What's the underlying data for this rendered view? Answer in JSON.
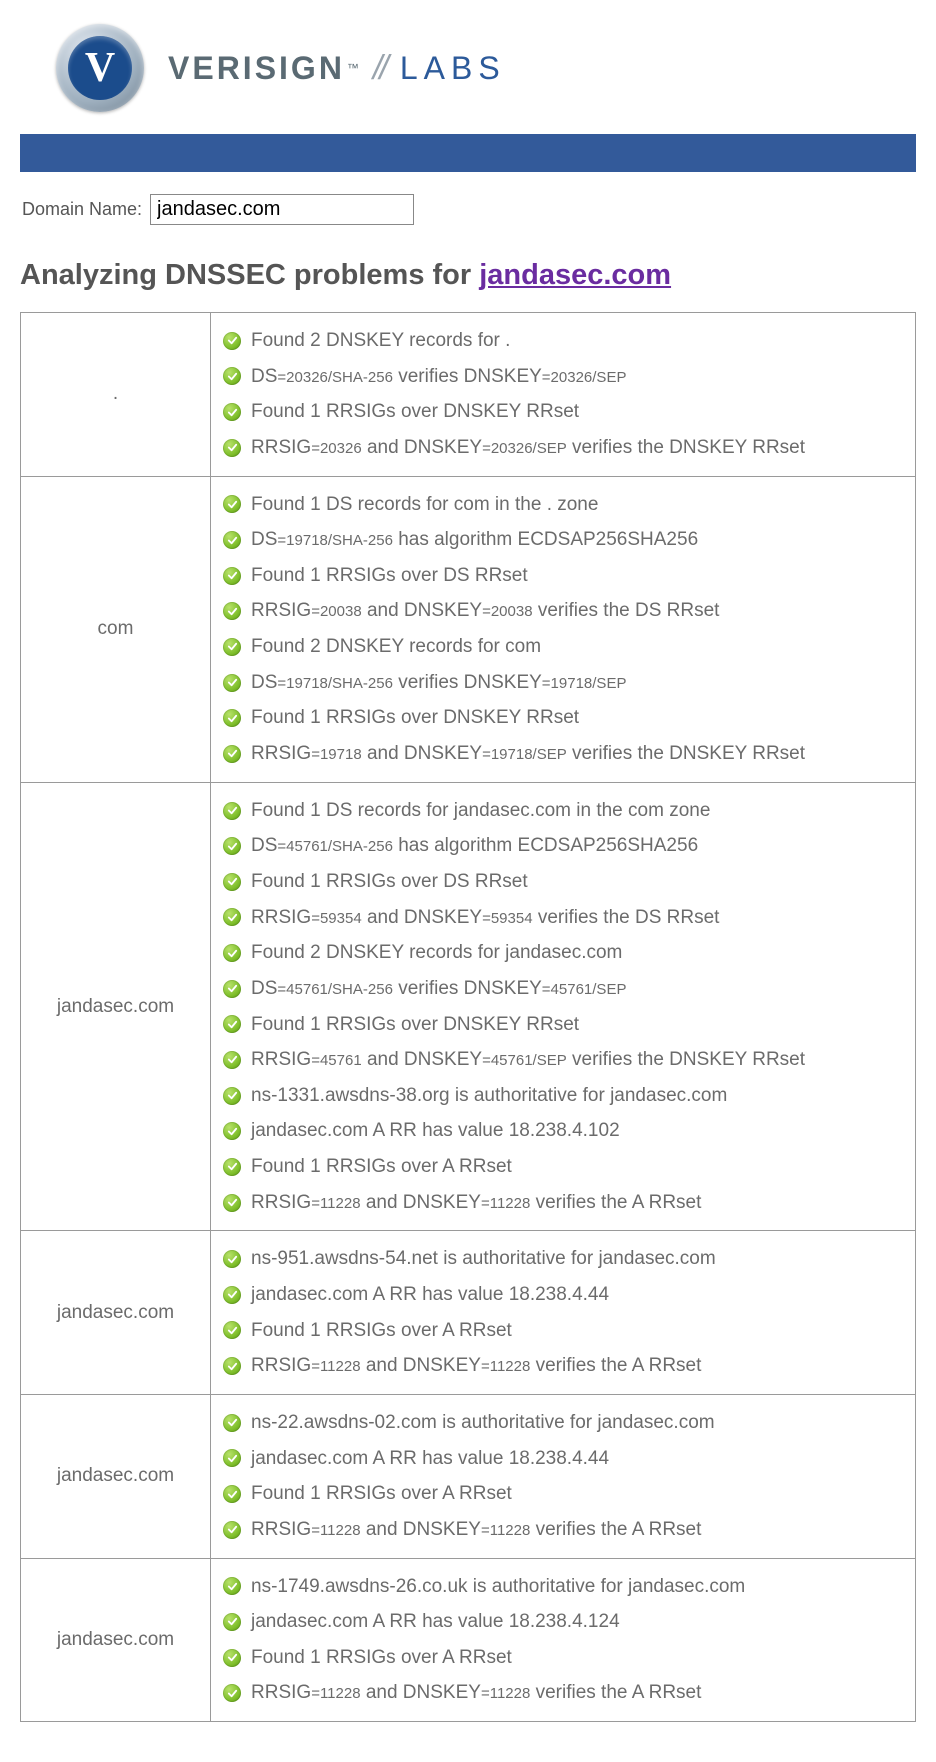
{
  "brand": {
    "letter": "V",
    "name": "VERISIGN",
    "tm": "™",
    "slashes": "//",
    "labs": "LABS"
  },
  "colors": {
    "navbar": "#335a9a",
    "heading_link": "#6a2ca0",
    "text": "#555555",
    "check_green": "#7fbf2b"
  },
  "form": {
    "label": "Domain Name:",
    "value": "jandasec.com"
  },
  "heading": {
    "prefix": "Analyzing DNSSEC problems for ",
    "domain": "jandasec.com"
  },
  "rows": [
    {
      "zone": ".",
      "items": [
        [
          {
            "t": "Found 2 DNSKEY records for ."
          }
        ],
        [
          {
            "t": "DS",
            "s": "=20326/SHA-256"
          },
          {
            "t": " verifies DNSKEY",
            "s": "=20326/SEP"
          }
        ],
        [
          {
            "t": "Found 1 RRSIGs over DNSKEY RRset"
          }
        ],
        [
          {
            "t": "RRSIG",
            "s": "=20326"
          },
          {
            "t": " and DNSKEY",
            "s": "=20326/SEP"
          },
          {
            "t": " verifies the DNSKEY RRset"
          }
        ]
      ]
    },
    {
      "zone": "com",
      "items": [
        [
          {
            "t": "Found 1 DS records for com in the . zone"
          }
        ],
        [
          {
            "t": "DS",
            "s": "=19718/SHA-256"
          },
          {
            "t": " has algorithm ECDSAP256SHA256"
          }
        ],
        [
          {
            "t": "Found 1 RRSIGs over DS RRset"
          }
        ],
        [
          {
            "t": "RRSIG",
            "s": "=20038"
          },
          {
            "t": " and DNSKEY",
            "s": "=20038"
          },
          {
            "t": " verifies the DS RRset"
          }
        ],
        [
          {
            "t": "Found 2 DNSKEY records for com"
          }
        ],
        [
          {
            "t": "DS",
            "s": "=19718/SHA-256"
          },
          {
            "t": " verifies DNSKEY",
            "s": "=19718/SEP"
          }
        ],
        [
          {
            "t": "Found 1 RRSIGs over DNSKEY RRset"
          }
        ],
        [
          {
            "t": "RRSIG",
            "s": "=19718"
          },
          {
            "t": " and DNSKEY",
            "s": "=19718/SEP"
          },
          {
            "t": " verifies the DNSKEY RRset"
          }
        ]
      ]
    },
    {
      "zone": "jandasec.com",
      "items": [
        [
          {
            "t": "Found 1 DS records for jandasec.com in the com zone"
          }
        ],
        [
          {
            "t": "DS",
            "s": "=45761/SHA-256"
          },
          {
            "t": " has algorithm ECDSAP256SHA256"
          }
        ],
        [
          {
            "t": "Found 1 RRSIGs over DS RRset"
          }
        ],
        [
          {
            "t": "RRSIG",
            "s": "=59354"
          },
          {
            "t": " and DNSKEY",
            "s": "=59354"
          },
          {
            "t": " verifies the DS RRset"
          }
        ],
        [
          {
            "t": "Found 2 DNSKEY records for jandasec.com"
          }
        ],
        [
          {
            "t": "DS",
            "s": "=45761/SHA-256"
          },
          {
            "t": " verifies DNSKEY",
            "s": "=45761/SEP"
          }
        ],
        [
          {
            "t": "Found 1 RRSIGs over DNSKEY RRset"
          }
        ],
        [
          {
            "t": "RRSIG",
            "s": "=45761"
          },
          {
            "t": " and DNSKEY",
            "s": "=45761/SEP"
          },
          {
            "t": " verifies the DNSKEY RRset"
          }
        ],
        [
          {
            "t": "ns-1331.awsdns-38.org is authoritative for jandasec.com"
          }
        ],
        [
          {
            "t": "jandasec.com A RR has value 18.238.4.102"
          }
        ],
        [
          {
            "t": "Found 1 RRSIGs over A RRset"
          }
        ],
        [
          {
            "t": "RRSIG",
            "s": "=11228"
          },
          {
            "t": " and DNSKEY",
            "s": "=11228"
          },
          {
            "t": " verifies the A RRset"
          }
        ]
      ]
    },
    {
      "zone": "jandasec.com",
      "items": [
        [
          {
            "t": "ns-951.awsdns-54.net is authoritative for jandasec.com"
          }
        ],
        [
          {
            "t": "jandasec.com A RR has value 18.238.4.44"
          }
        ],
        [
          {
            "t": "Found 1 RRSIGs over A RRset"
          }
        ],
        [
          {
            "t": "RRSIG",
            "s": "=11228"
          },
          {
            "t": " and DNSKEY",
            "s": "=11228"
          },
          {
            "t": " verifies the A RRset"
          }
        ]
      ]
    },
    {
      "zone": "jandasec.com",
      "items": [
        [
          {
            "t": "ns-22.awsdns-02.com is authoritative for jandasec.com"
          }
        ],
        [
          {
            "t": "jandasec.com A RR has value 18.238.4.44"
          }
        ],
        [
          {
            "t": "Found 1 RRSIGs over A RRset"
          }
        ],
        [
          {
            "t": "RRSIG",
            "s": "=11228"
          },
          {
            "t": " and DNSKEY",
            "s": "=11228"
          },
          {
            "t": " verifies the A RRset"
          }
        ]
      ]
    },
    {
      "zone": "jandasec.com",
      "items": [
        [
          {
            "t": "ns-1749.awsdns-26.co.uk is authoritative for jandasec.com"
          }
        ],
        [
          {
            "t": "jandasec.com A RR has value 18.238.4.124"
          }
        ],
        [
          {
            "t": "Found 1 RRSIGs over A RRset"
          }
        ],
        [
          {
            "t": "RRSIG",
            "s": "=11228"
          },
          {
            "t": " and DNSKEY",
            "s": "=11228"
          },
          {
            "t": " verifies the A RRset"
          }
        ]
      ]
    }
  ]
}
